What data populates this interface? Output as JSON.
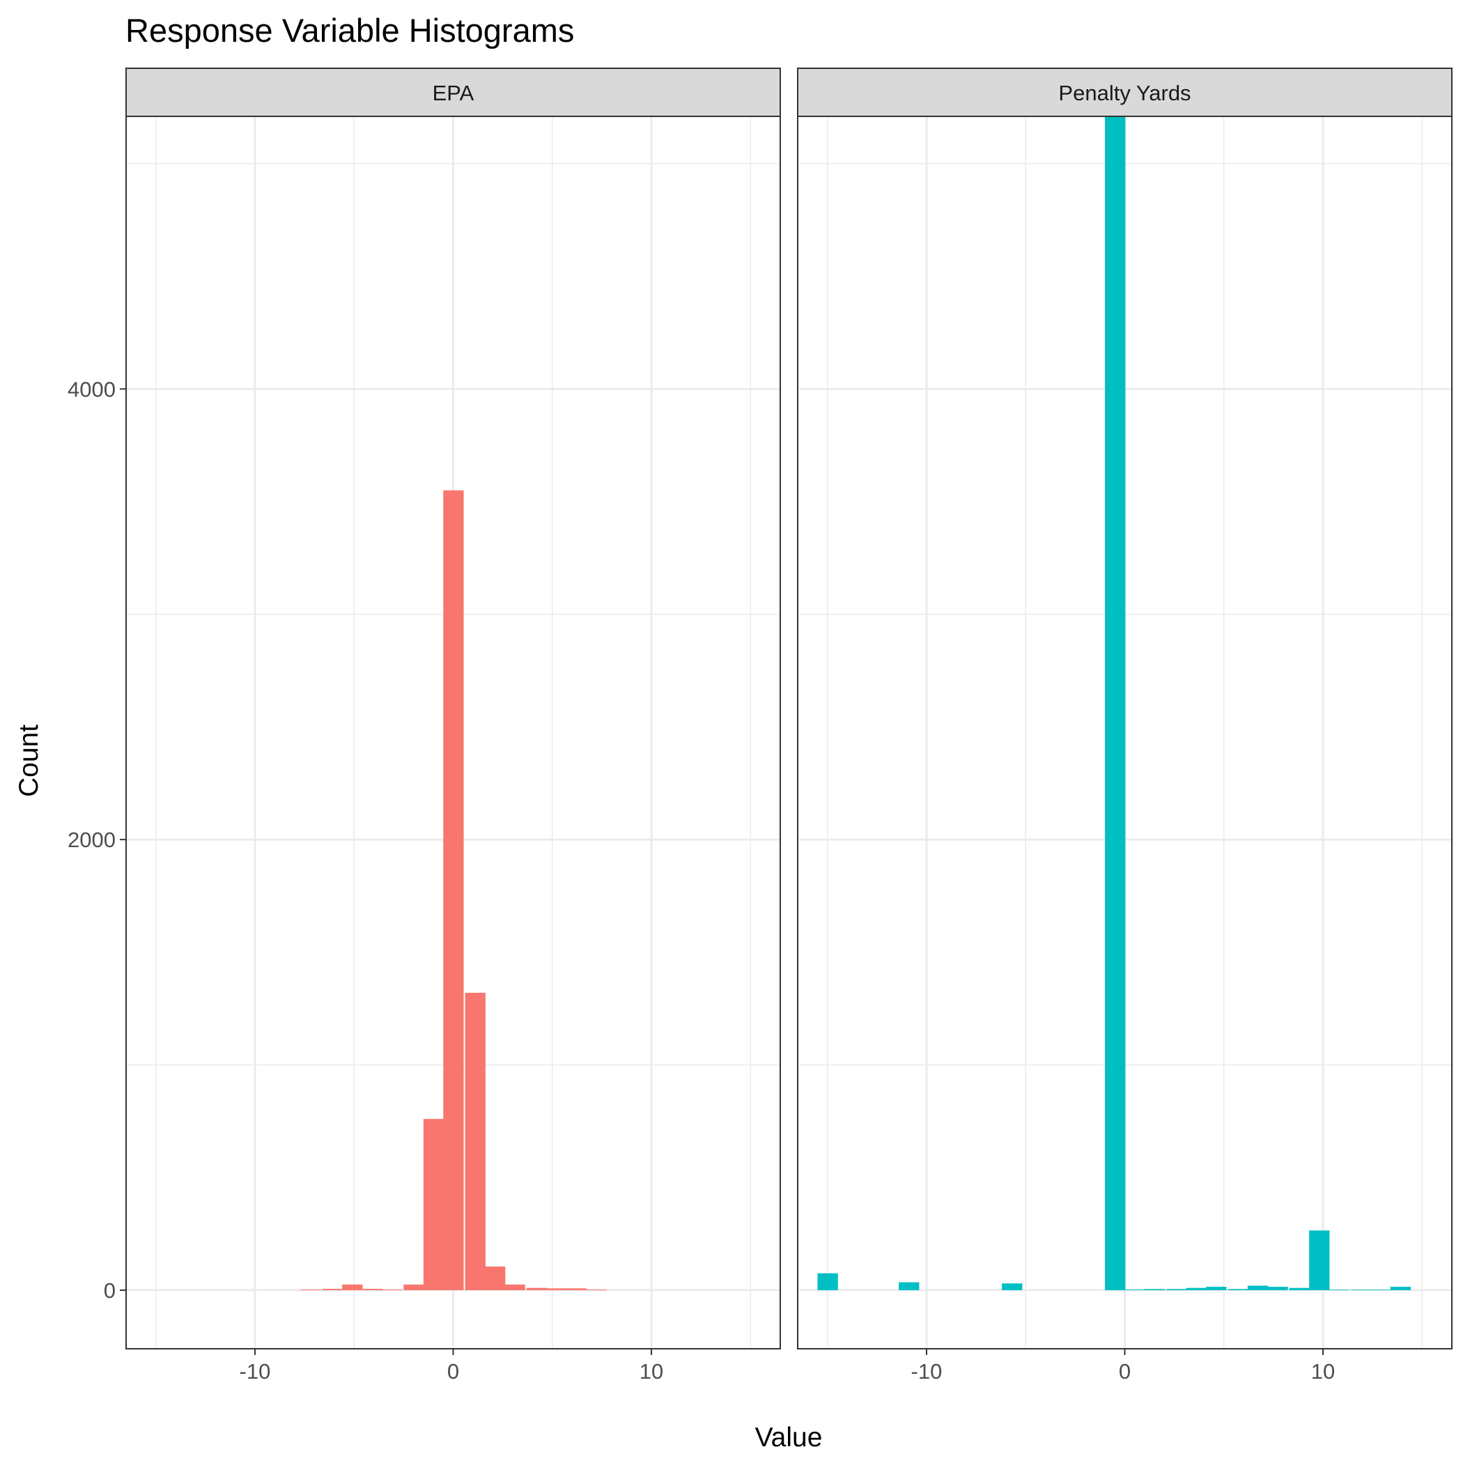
{
  "chart_data": {
    "type": "bar",
    "title": "Response Variable Histograms",
    "xlabel": "Value",
    "ylabel": "Count",
    "xlim": [
      -16.5,
      16.5
    ],
    "ylim": [
      -260,
      5210
    ],
    "x_ticks": [
      -10,
      0,
      10
    ],
    "y_ticks": [
      0,
      2000,
      4000
    ],
    "grid": true,
    "legend": "none",
    "facets": [
      {
        "name": "EPA",
        "color": "#F8766D",
        "bin_width": 1.03,
        "bins": [
          {
            "x": -7.7,
            "count": 3
          },
          {
            "x": -6.6,
            "count": 6
          },
          {
            "x": -5.6,
            "count": 25
          },
          {
            "x": -4.6,
            "count": 6
          },
          {
            "x": -3.6,
            "count": 3
          },
          {
            "x": -2.5,
            "count": 25
          },
          {
            "x": -1.5,
            "count": 760
          },
          {
            "x": -0.5,
            "count": 3550
          },
          {
            "x": 0.6,
            "count": 1320
          },
          {
            "x": 1.6,
            "count": 105
          },
          {
            "x": 2.6,
            "count": 25
          },
          {
            "x": 3.7,
            "count": 10
          },
          {
            "x": 4.7,
            "count": 8
          },
          {
            "x": 5.7,
            "count": 8
          },
          {
            "x": 6.7,
            "count": 3
          }
        ]
      },
      {
        "name": "Penalty Yards",
        "color": "#00BFC4",
        "bin_width": 1.03,
        "bins": [
          {
            "x": -15.5,
            "count": 75
          },
          {
            "x": -11.4,
            "count": 35
          },
          {
            "x": -6.2,
            "count": 30
          },
          {
            "x": -1.0,
            "count": 5320
          },
          {
            "x": 0.0,
            "count": 3
          },
          {
            "x": 1.0,
            "count": 5
          },
          {
            "x": 2.1,
            "count": 5
          },
          {
            "x": 3.1,
            "count": 10
          },
          {
            "x": 4.1,
            "count": 15
          },
          {
            "x": 5.2,
            "count": 5
          },
          {
            "x": 6.2,
            "count": 20
          },
          {
            "x": 7.2,
            "count": 15
          },
          {
            "x": 8.3,
            "count": 10
          },
          {
            "x": 9.3,
            "count": 265
          },
          {
            "x": 10.3,
            "count": 2
          },
          {
            "x": 11.4,
            "count": 2
          },
          {
            "x": 12.4,
            "count": 2
          },
          {
            "x": 13.4,
            "count": 15
          }
        ]
      }
    ]
  }
}
